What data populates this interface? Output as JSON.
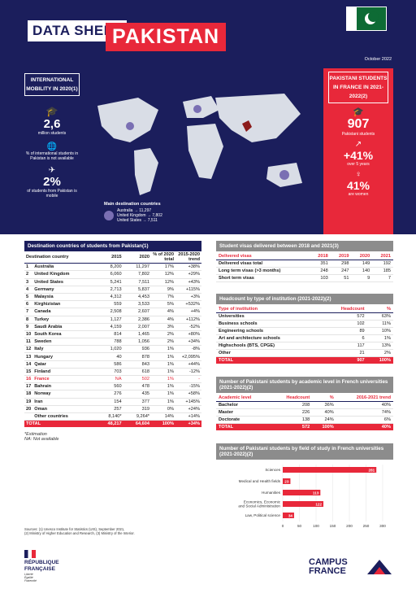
{
  "header": {
    "title_left": "DATA SHEET",
    "title_country": "PAKISTAN",
    "date": "October 2022"
  },
  "colors": {
    "navy": "#1b1e5c",
    "red": "#e8283a",
    "pakistan_green": "#0e6b35"
  },
  "left_panel": {
    "title": "INTERNATIONAL MOBILITY IN 2020(1)",
    "stat1_value": "2,6",
    "stat1_label": "million students",
    "stat2_label": "% of international students in Pakistan is not available",
    "stat3_value": "2%",
    "stat3_label": "of students from Pakistan is mobile"
  },
  "right_panel": {
    "title": "PAKISTANI STUDENTS IN FRANCE IN 2021-2022(2)",
    "stat1_value": "907",
    "stat1_label": "Pakistani students",
    "stat2_value": "+41%",
    "stat2_label": "over 5 years",
    "stat3_value": "41%",
    "stat3_label": "are women"
  },
  "main_destinations": {
    "title": "Main destination countries",
    "items": [
      "Australia → 11,297",
      "United Kingdom → 7,802",
      "United States → 7,511"
    ]
  },
  "destination_table": {
    "title": "Destination countries of students from Pakistan(1)",
    "headers": [
      "Destination country",
      "2015",
      "2020",
      "% of 2020 total",
      "2015-2020 trend"
    ],
    "rows": [
      [
        "1",
        "Australia",
        "8,200",
        "11,297",
        "17%",
        "+38%"
      ],
      [
        "2",
        "United Kingdom",
        "6,060",
        "7,802",
        "12%",
        "+29%"
      ],
      [
        "3",
        "United States",
        "5,241",
        "7,511",
        "12%",
        "+43%"
      ],
      [
        "4",
        "Germany",
        "2,713",
        "5,837",
        "9%",
        "+115%"
      ],
      [
        "5",
        "Malaysia",
        "4,312",
        "4,453",
        "7%",
        "+3%"
      ],
      [
        "6",
        "Kirghizistan",
        "559",
        "3,533",
        "5%",
        "+532%"
      ],
      [
        "7",
        "Canada",
        "2,508",
        "2,607",
        "4%",
        "+4%"
      ],
      [
        "8",
        "Turkey",
        "1,127",
        "2,386",
        "4%",
        "+112%"
      ],
      [
        "9",
        "Saudi Arabia",
        "4,159",
        "2,007",
        "3%",
        "-52%"
      ],
      [
        "10",
        "South Korea",
        "814",
        "1,465",
        "2%",
        "+80%"
      ],
      [
        "11",
        "Sweden",
        "788",
        "1,056",
        "2%",
        "+34%"
      ],
      [
        "12",
        "Italy",
        "1,020",
        "936",
        "1%",
        "-8%"
      ],
      [
        "13",
        "Hungary",
        "40",
        "878",
        "1%",
        "+2,095%"
      ],
      [
        "14",
        "Qatar",
        "586",
        "843",
        "1%",
        "+44%"
      ],
      [
        "15",
        "Finland",
        "703",
        "618",
        "1%",
        "-12%"
      ],
      [
        "16",
        "France",
        "NA",
        "502",
        "1%",
        "-"
      ],
      [
        "17",
        "Bahrain",
        "560",
        "478",
        "1%",
        "-15%"
      ],
      [
        "18",
        "Norway",
        "276",
        "435",
        "1%",
        "+58%"
      ],
      [
        "19",
        "Iran",
        "154",
        "377",
        "1%",
        "+145%"
      ],
      [
        "20",
        "Oman",
        "257",
        "319",
        "0%",
        "+24%"
      ],
      [
        "",
        "Other countries",
        "8,140*",
        "9,264*",
        "14%",
        "+14%"
      ]
    ],
    "total": [
      "TOTAL",
      "48,217",
      "64,604",
      "100%",
      "+34%"
    ],
    "note1": "*Estimation",
    "note2": "NA: Not available"
  },
  "visas_table": {
    "title": "Student visas delivered between 2018 and 2021(3)",
    "headers": [
      "Delivered visas",
      "2018",
      "2019",
      "2020",
      "2021"
    ],
    "rows": [
      [
        "Delivered visas total",
        "351",
        "298",
        "149",
        "192"
      ],
      [
        "Long term visas (>3 months)",
        "248",
        "247",
        "140",
        "185"
      ],
      [
        "Short term visas",
        "103",
        "51",
        "9",
        "7"
      ]
    ]
  },
  "institution_table": {
    "title": "Headcount by type of institution (2021-2022)(2)",
    "headers": [
      "Type of institution",
      "Headcount",
      "%"
    ],
    "rows": [
      [
        "Universities",
        "572",
        "63%"
      ],
      [
        "Business schools",
        "102",
        "11%"
      ],
      [
        "Engineering schools",
        "89",
        "10%"
      ],
      [
        "Art and architecture schools",
        "6",
        "1%"
      ],
      [
        "Highschools (BTS, CPGE)",
        "117",
        "13%"
      ],
      [
        "Other",
        "21",
        "2%"
      ]
    ],
    "total": [
      "TOTAL",
      "907",
      "100%"
    ]
  },
  "level_table": {
    "title": "Number of Pakistani students by academic level in French universities (2021-2022)(2)",
    "headers": [
      "Academic level",
      "Headcount",
      "%",
      "2016-2021 trend"
    ],
    "rows": [
      [
        "Bachelor",
        "208",
        "36%",
        "40%"
      ],
      [
        "Master",
        "226",
        "40%",
        "74%"
      ],
      [
        "Doctorate",
        "138",
        "24%",
        "6%"
      ]
    ],
    "total": [
      "TOTAL",
      "572",
      "100%",
      "40%"
    ]
  },
  "field_chart": {
    "title": "Number of Pakistani students by field of study in French universities (2021-2022)(2)",
    "categories": [
      "Sciences",
      "Medical and Health fields",
      "Humanities",
      "Economics, Economic and Social Administration",
      "Law, Political science"
    ],
    "category_lines": [
      [
        "Sciences"
      ],
      [
        "Medical and Health fields"
      ],
      [
        "Humanities"
      ],
      [
        "Economics, Economic",
        "and Social Administration"
      ],
      [
        "Law, Political science"
      ]
    ],
    "values": [
      281,
      23,
      113,
      122,
      34
    ],
    "ticks": [
      0,
      50,
      100,
      150,
      200,
      250,
      300
    ],
    "xlim": [
      0,
      300
    ]
  },
  "chart_data": {
    "type": "bar",
    "categories": [
      "Sciences",
      "Medical and Health fields",
      "Humanities",
      "Economics, Economic and Social Administration",
      "Law, Political science"
    ],
    "values": [
      281,
      23,
      113,
      122,
      34
    ],
    "title": "Number of Pakistani students by field of study in French universities (2021-2022)(2)",
    "xlim": [
      0,
      300
    ],
    "orientation": "horizontal"
  },
  "sources": {
    "line1": "Sources: (1) Unesco Institute for Statistics (UIS), September 2021,",
    "line2": "(2) Ministry of Higher Education and Research, (3) Ministry of the Interior."
  },
  "footer": {
    "rf_line1": "RÉPUBLIQUE",
    "rf_line2": "FRANÇAISE",
    "rf_motto1": "Liberté",
    "rf_motto2": "Égalité",
    "rf_motto3": "Fraternité",
    "cf_line1": "CAMPUS",
    "cf_line2": "FRANCE"
  }
}
